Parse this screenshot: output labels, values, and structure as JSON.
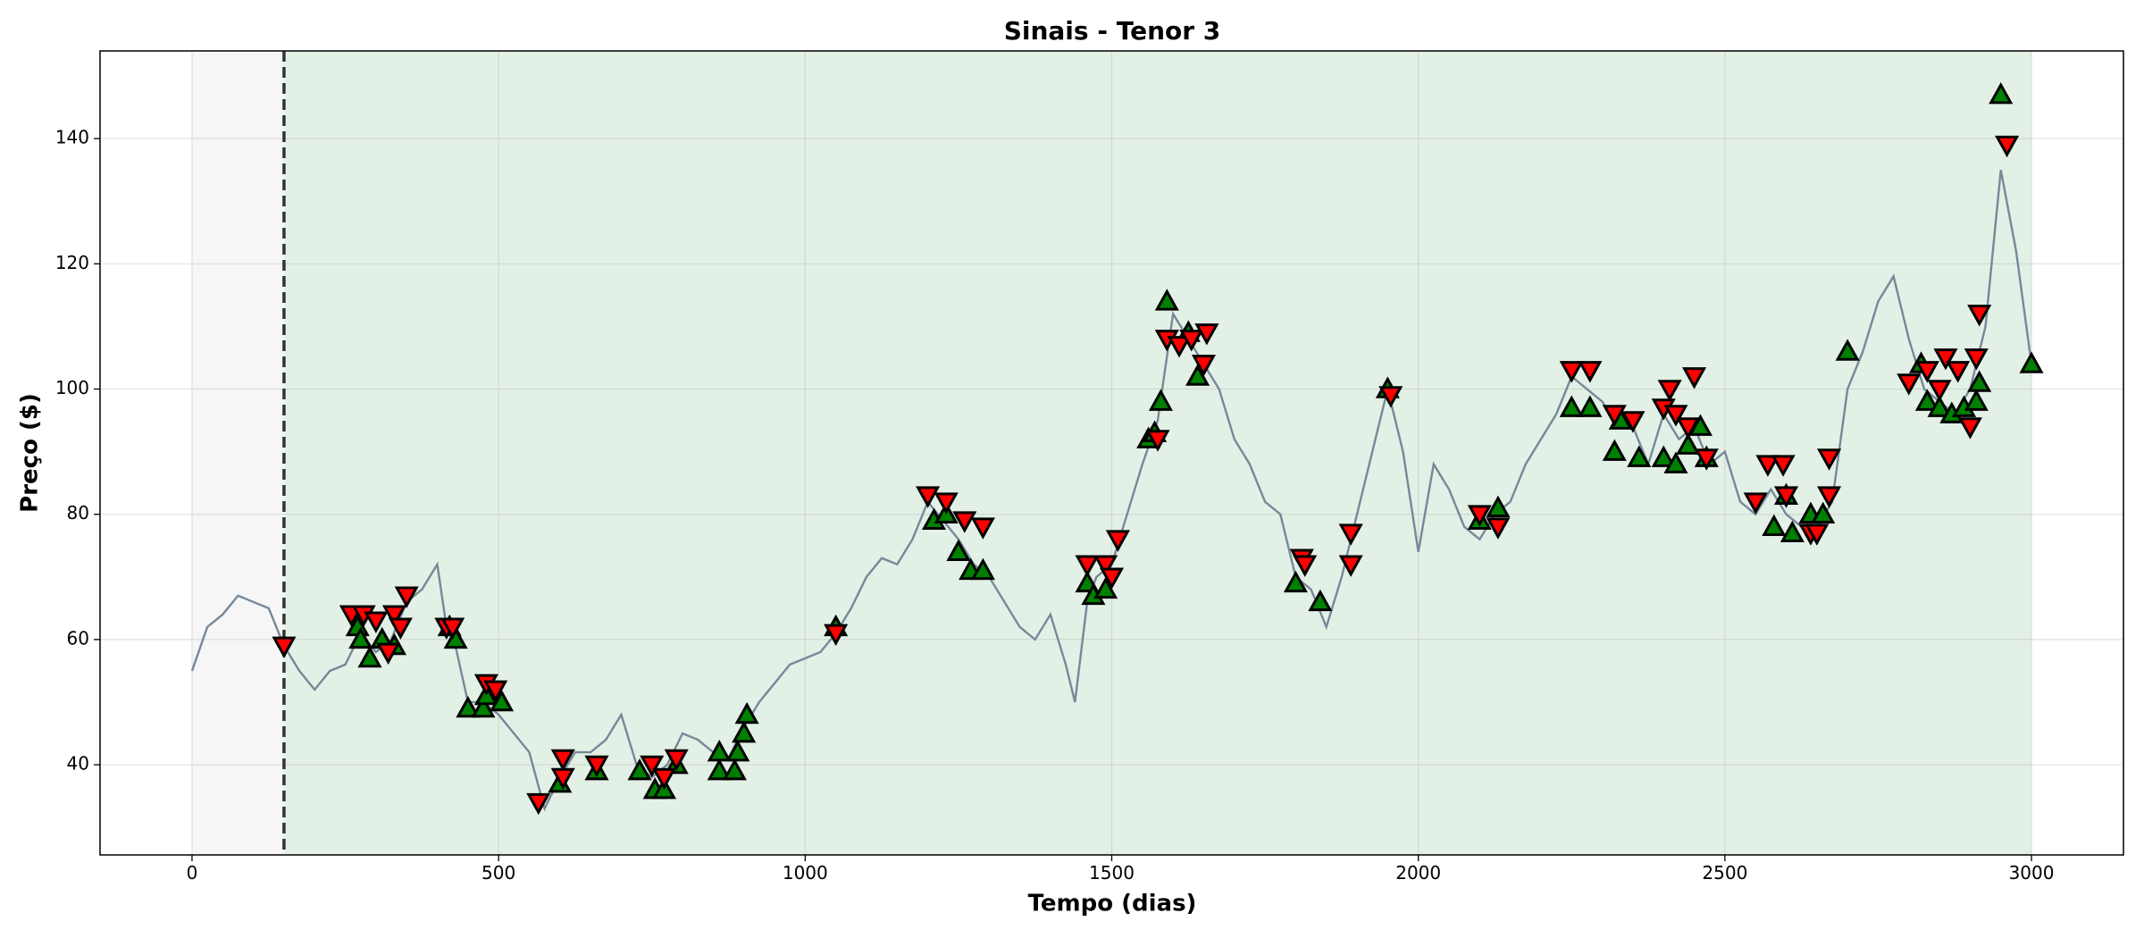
{
  "chart_data": {
    "type": "line",
    "title": "Sinais - Tenor 3",
    "x_label": "Tempo (dias)",
    "y_label": "Preço ($)",
    "xlim": [
      -150,
      3150
    ],
    "ylim": [
      25.6,
      154
    ],
    "xticks": [
      0,
      500,
      1000,
      1500,
      2000,
      2500,
      3000
    ],
    "yticks": [
      40,
      60,
      80,
      100,
      120,
      140
    ],
    "grid": true,
    "spans": [
      {
        "xmin": 0,
        "xmax": 150,
        "color": "#f6f6f6"
      },
      {
        "xmin": 150,
        "xmax": 3000,
        "color": "#e3f0e5"
      }
    ],
    "vlines": [
      {
        "x": 150,
        "color": "#333333",
        "dashed": true
      }
    ],
    "price": {
      "color": "#778899",
      "x": [
        0,
        25,
        50,
        75,
        100,
        125,
        150,
        175,
        200,
        225,
        250,
        275,
        300,
        325,
        350,
        375,
        400,
        415,
        425,
        450,
        475,
        500,
        525,
        550,
        575,
        600,
        625,
        650,
        675,
        700,
        725,
        750,
        775,
        800,
        825,
        850,
        875,
        900,
        925,
        950,
        975,
        1000,
        1025,
        1050,
        1075,
        1100,
        1125,
        1150,
        1175,
        1200,
        1225,
        1250,
        1275,
        1300,
        1325,
        1350,
        1375,
        1400,
        1425,
        1440,
        1460,
        1475,
        1500,
        1525,
        1550,
        1575,
        1600,
        1625,
        1650,
        1675,
        1700,
        1725,
        1750,
        1775,
        1800,
        1825,
        1850,
        1875,
        1900,
        1925,
        1950,
        1975,
        2000,
        2025,
        2050,
        2075,
        2100,
        2125,
        2150,
        2175,
        2200,
        2225,
        2250,
        2275,
        2300,
        2325,
        2350,
        2375,
        2400,
        2425,
        2450,
        2475,
        2500,
        2525,
        2550,
        2575,
        2600,
        2625,
        2650,
        2675,
        2700,
        2725,
        2750,
        2775,
        2800,
        2825,
        2850,
        2875,
        2900,
        2925,
        2950,
        2975,
        3000
      ],
      "y": [
        55,
        62,
        64,
        67,
        66,
        65,
        59,
        55,
        52,
        55,
        56,
        61,
        58,
        60,
        66,
        68,
        72,
        62,
        61,
        50,
        50,
        48,
        45,
        42,
        33,
        38,
        42,
        42,
        44,
        48,
        40,
        38,
        40,
        45,
        44,
        42,
        41,
        46,
        50,
        53,
        56,
        57,
        58,
        61,
        65,
        70,
        73,
        72,
        76,
        82,
        79,
        76,
        72,
        70,
        66,
        62,
        60,
        64,
        56,
        50,
        66,
        70,
        72,
        80,
        88,
        95,
        112,
        108,
        104,
        100,
        92,
        88,
        82,
        80,
        70,
        68,
        62,
        70,
        80,
        90,
        100,
        90,
        74,
        88,
        84,
        78,
        76,
        80,
        82,
        88,
        92,
        96,
        102,
        100,
        98,
        94,
        94,
        88,
        96,
        92,
        94,
        88,
        90,
        82,
        80,
        84,
        80,
        78,
        78,
        82,
        100,
        106,
        114,
        118,
        108,
        100,
        98,
        96,
        100,
        110,
        135,
        122,
        104
      ]
    },
    "buy_signals": {
      "color": "#008000",
      "x": [
        270,
        275,
        290,
        310,
        330,
        420,
        430,
        450,
        475,
        480,
        505,
        600,
        660,
        730,
        755,
        770,
        790,
        860,
        860,
        885,
        890,
        900,
        905,
        1050,
        1210,
        1230,
        1250,
        1270,
        1290,
        1460,
        1470,
        1490,
        1560,
        1570,
        1580,
        1590,
        1625,
        1640,
        1800,
        1840,
        1950,
        2100,
        2130,
        2250,
        2280,
        2320,
        2330,
        2360,
        2400,
        2420,
        2440,
        2460,
        2470,
        2580,
        2600,
        2610,
        2640,
        2660,
        2700,
        2820,
        2830,
        2850,
        2870,
        2890,
        2910,
        2915,
        2950,
        3000
      ],
      "y": [
        62,
        60,
        57,
        60,
        59,
        62,
        60,
        49,
        49,
        51,
        50,
        37,
        39,
        39,
        36,
        36,
        40,
        39,
        42,
        39,
        42,
        45,
        48,
        62,
        79,
        80,
        74,
        71,
        71,
        69,
        67,
        68,
        92,
        93,
        98,
        114,
        109,
        102,
        69,
        66,
        100,
        79,
        81,
        97,
        97,
        90,
        95,
        89,
        89,
        88,
        91,
        94,
        89,
        78,
        83,
        77,
        80,
        80,
        106,
        104,
        98,
        97,
        96,
        97,
        98,
        101,
        147,
        104
      ]
    },
    "sell_signals": {
      "color": "#ff0000",
      "x": [
        150,
        260,
        280,
        300,
        320,
        330,
        340,
        350,
        415,
        425,
        480,
        495,
        565,
        605,
        605,
        660,
        750,
        770,
        790,
        1050,
        1200,
        1230,
        1260,
        1290,
        1460,
        1490,
        1500,
        1510,
        1575,
        1590,
        1610,
        1630,
        1655,
        1650,
        1810,
        1815,
        1890,
        1890,
        1955,
        2100,
        2130,
        2250,
        2280,
        2320,
        2350,
        2400,
        2410,
        2420,
        2440,
        2450,
        2470,
        2550,
        2570,
        2595,
        2600,
        2640,
        2650,
        2670,
        2670,
        2800,
        2830,
        2850,
        2860,
        2880,
        2900,
        2910,
        2915,
        2960
      ],
      "y": [
        59,
        64,
        64,
        63,
        58,
        64,
        62,
        67,
        62,
        62,
        53,
        52,
        34,
        41,
        38,
        40,
        40,
        38,
        41,
        61,
        83,
        82,
        79,
        78,
        72,
        72,
        70,
        76,
        92,
        108,
        107,
        108,
        109,
        104,
        73,
        72,
        77,
        72,
        99,
        80,
        78,
        103,
        103,
        96,
        95,
        97,
        100,
        96,
        94,
        102,
        89,
        82,
        88,
        88,
        83,
        77,
        77,
        83,
        89,
        101,
        103,
        100,
        105,
        103,
        94,
        105,
        112,
        139
      ]
    }
  }
}
